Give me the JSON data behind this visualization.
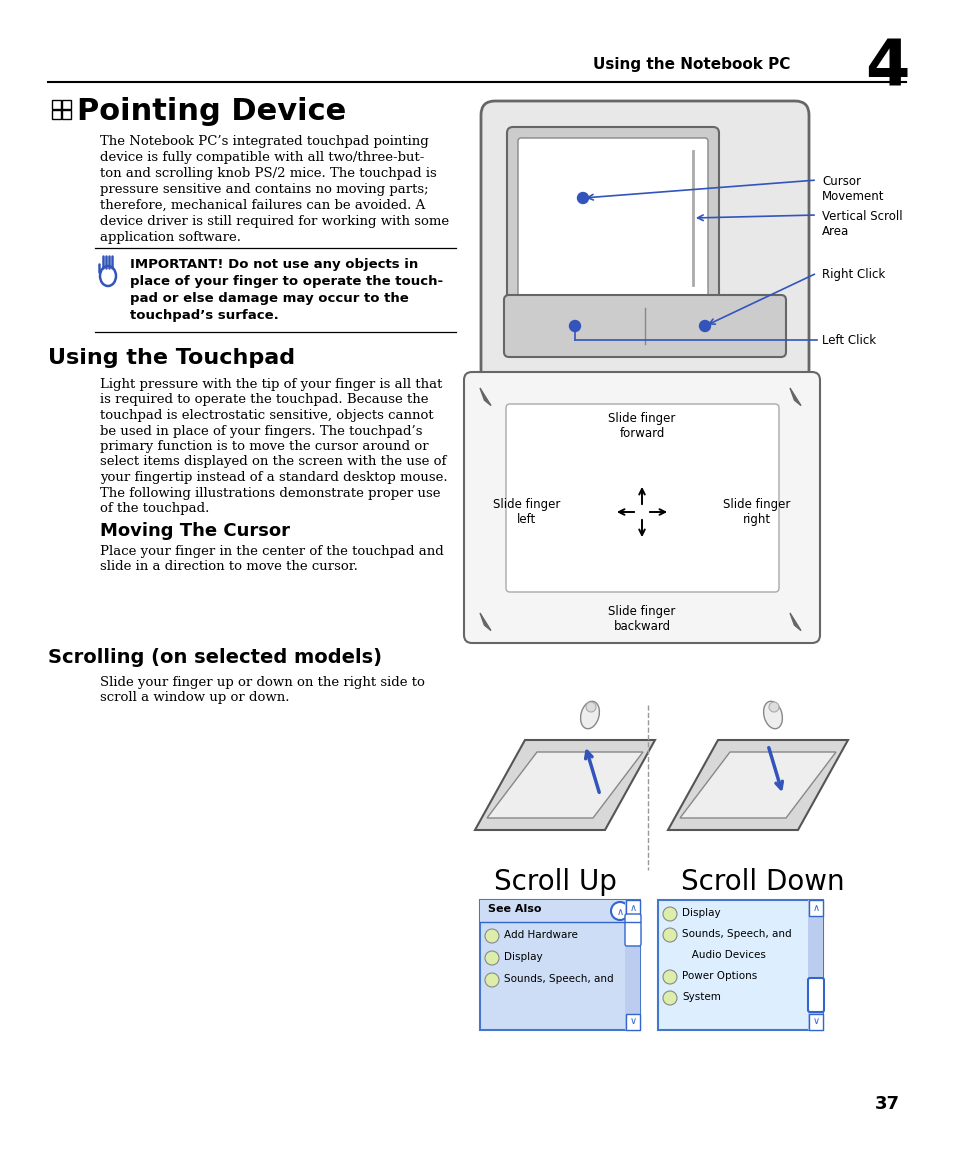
{
  "bg_color": "#ffffff",
  "header_text": "Using the Notebook PC",
  "header_number": "4",
  "page_number": "37",
  "title1": "Pointing Device",
  "body1": [
    "The Notebook PC’s integrated touchpad pointing",
    "device is fully compatible with all two/three-but-",
    "ton and scrolling knob PS/2 mice. The touchpad is",
    "pressure sensitive and contains no moving parts;",
    "therefore, mechanical failures can be avoided. A",
    "device driver is still required for working with some",
    "application software."
  ],
  "important_text": [
    "IMPORTANT! Do not use any objects in",
    "place of your finger to operate the touch-",
    "pad or else damage may occur to the",
    "touchpad’s surface."
  ],
  "title2": "Using the Touchpad",
  "body2": [
    "Light pressure with the tip of your finger is all that",
    "is required to operate the touchpad. Because the",
    "touchpad is electrostatic sensitive, objects cannot",
    "be used in place of your fingers. The touchpad’s",
    "primary function is to move the cursor around or",
    "select items displayed on the screen with the use of",
    "your fingertip instead of a standard desktop mouse.",
    "The following illustrations demonstrate proper use",
    "of the touchpad."
  ],
  "subtitle1": "Moving The Cursor",
  "body3": [
    "Place your finger in the center of the touchpad and",
    "slide in a direction to move the cursor."
  ],
  "subtitle2": "Scrolling (on selected models)",
  "body4": [
    "Slide your finger up or down on the right side to",
    "scroll a window up or down."
  ],
  "label_cursor": "Cursor\nMovement",
  "label_vscroll": "Vertical Scroll\nArea",
  "label_rightclick": "Right Click",
  "label_leftclick": "Left Click",
  "label_forward": "Slide finger\nforward",
  "label_backward": "Slide finger\nbackward",
  "label_left": "Slide finger\nleft",
  "label_right": "Slide finger\nright",
  "label_scrollup": "Scroll Up",
  "label_scrolldown": "Scroll Down",
  "blue": "#3355bb",
  "dark_gray": "#444444",
  "mid_gray": "#888888",
  "light_gray": "#cccccc",
  "lighter_gray": "#e8e8e8",
  "off_white": "#f5f5f5",
  "ss_bg": "#ccddf5",
  "ss_header": "#4477cc",
  "ss_scrollbar": "#aabbdd",
  "ss_thumb": "#6688bb"
}
